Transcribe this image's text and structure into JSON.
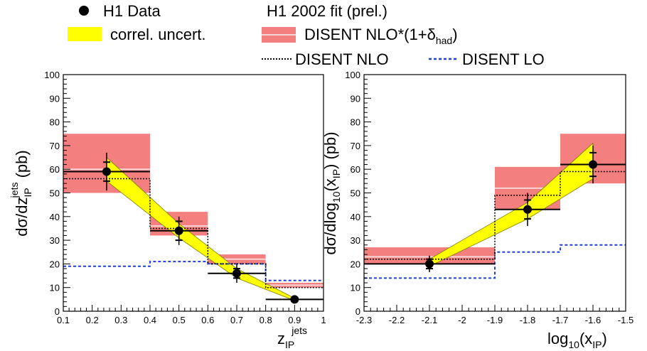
{
  "legend": {
    "h1_data": "H1 Data",
    "correl": "correl. uncert.",
    "fit": "H1 2002 fit (prel.)",
    "nlo_had_main": "DISENT NLO*(1+δ",
    "nlo_had_sub": "had",
    "nlo_had_close": ")",
    "nlo": "DISENT NLO",
    "lo": "DISENT LO"
  },
  "colors": {
    "nlo_band": "#f47f7f",
    "nlo_central": "#f4d6d6",
    "correl_band": "#ffff00",
    "correl_edge": "#7a7a00",
    "lo_line": "#1f3fd8",
    "nlo_line": "#000000",
    "data": "#000000"
  },
  "chart_data": [
    {
      "type": "bar",
      "ylabel": {
        "main": "dσ/dz",
        "sub": "IP",
        "sup": "jets",
        "unit": " (pb)"
      },
      "xlabel": {
        "main": "z",
        "sub": "IP",
        "sup": "jets"
      },
      "xlim": [
        0.1,
        1.0
      ],
      "ylim": [
        0,
        100
      ],
      "xticks": [
        "0.1",
        "0.2",
        "0.3",
        "0.4",
        "0.5",
        "0.6",
        "0.7",
        "0.8",
        "0.9",
        "1"
      ],
      "yticks": [
        "0",
        "10",
        "20",
        "30",
        "40",
        "50",
        "60",
        "70",
        "80",
        "90",
        "100"
      ],
      "bins": [
        [
          0.1,
          0.4
        ],
        [
          0.4,
          0.6
        ],
        [
          0.6,
          0.8
        ],
        [
          0.8,
          1.0
        ]
      ],
      "data_x": [
        0.25,
        0.5,
        0.7,
        0.9
      ],
      "data_y": [
        59,
        34,
        16,
        5
      ],
      "data_err_stat": [
        4,
        4,
        2,
        0.8
      ],
      "data_err_tot": [
        8,
        6,
        4,
        1.2
      ],
      "nlo_had_lo": [
        50,
        32,
        20,
        10
      ],
      "nlo_had_hi": [
        75,
        42,
        24,
        12
      ],
      "nlo_had_central": [
        60,
        36,
        22,
        11
      ],
      "nlo": [
        56,
        35,
        20,
        10
      ],
      "lo": [
        19,
        21,
        20,
        13
      ],
      "correl_x": [
        0.25,
        0.5,
        0.7,
        0.9
      ],
      "correl_lo": [
        55,
        31,
        14,
        4.5
      ],
      "correl_hi": [
        65,
        37,
        18,
        5.5
      ]
    },
    {
      "type": "bar",
      "ylabel": {
        "main": "dσ/dlog",
        "sub": "10",
        "mid": "(x",
        "sub2": "IP",
        "end": ") (pb)"
      },
      "xlabel": {
        "main": "log",
        "sub": "10",
        "mid": "(x",
        "sub2": "IP",
        "end": ")"
      },
      "xlim": [
        -2.3,
        -1.5
      ],
      "ylim": [
        0,
        100
      ],
      "xticks": [
        "-2.3",
        "-2.2",
        "-2.1",
        "-2",
        "-1.9",
        "-1.8",
        "-1.7",
        "-1.6",
        "-1.5"
      ],
      "yticks": [
        "0",
        "10",
        "20",
        "30",
        "40",
        "50",
        "60",
        "70",
        "80",
        "90",
        "100"
      ],
      "bins": [
        [
          -2.3,
          -1.9
        ],
        [
          -1.9,
          -1.7
        ],
        [
          -1.7,
          -1.5
        ]
      ],
      "data_x": [
        -2.1,
        -1.8,
        -1.6
      ],
      "data_y": [
        20,
        43,
        62
      ],
      "data_err_stat": [
        2,
        4,
        5
      ],
      "data_err_tot": [
        3.5,
        7,
        8
      ],
      "nlo_had_lo": [
        20,
        43,
        54
      ],
      "nlo_had_hi": [
        27,
        61,
        75
      ],
      "nlo_had_central": [
        23,
        52,
        62
      ],
      "nlo": [
        22,
        49,
        59
      ],
      "lo": [
        14,
        25,
        28
      ],
      "correl_x": [
        -2.1,
        -1.8,
        -1.6
      ],
      "correl_lo": [
        19,
        39,
        56
      ],
      "correl_hi": [
        22,
        46,
        71
      ]
    }
  ]
}
